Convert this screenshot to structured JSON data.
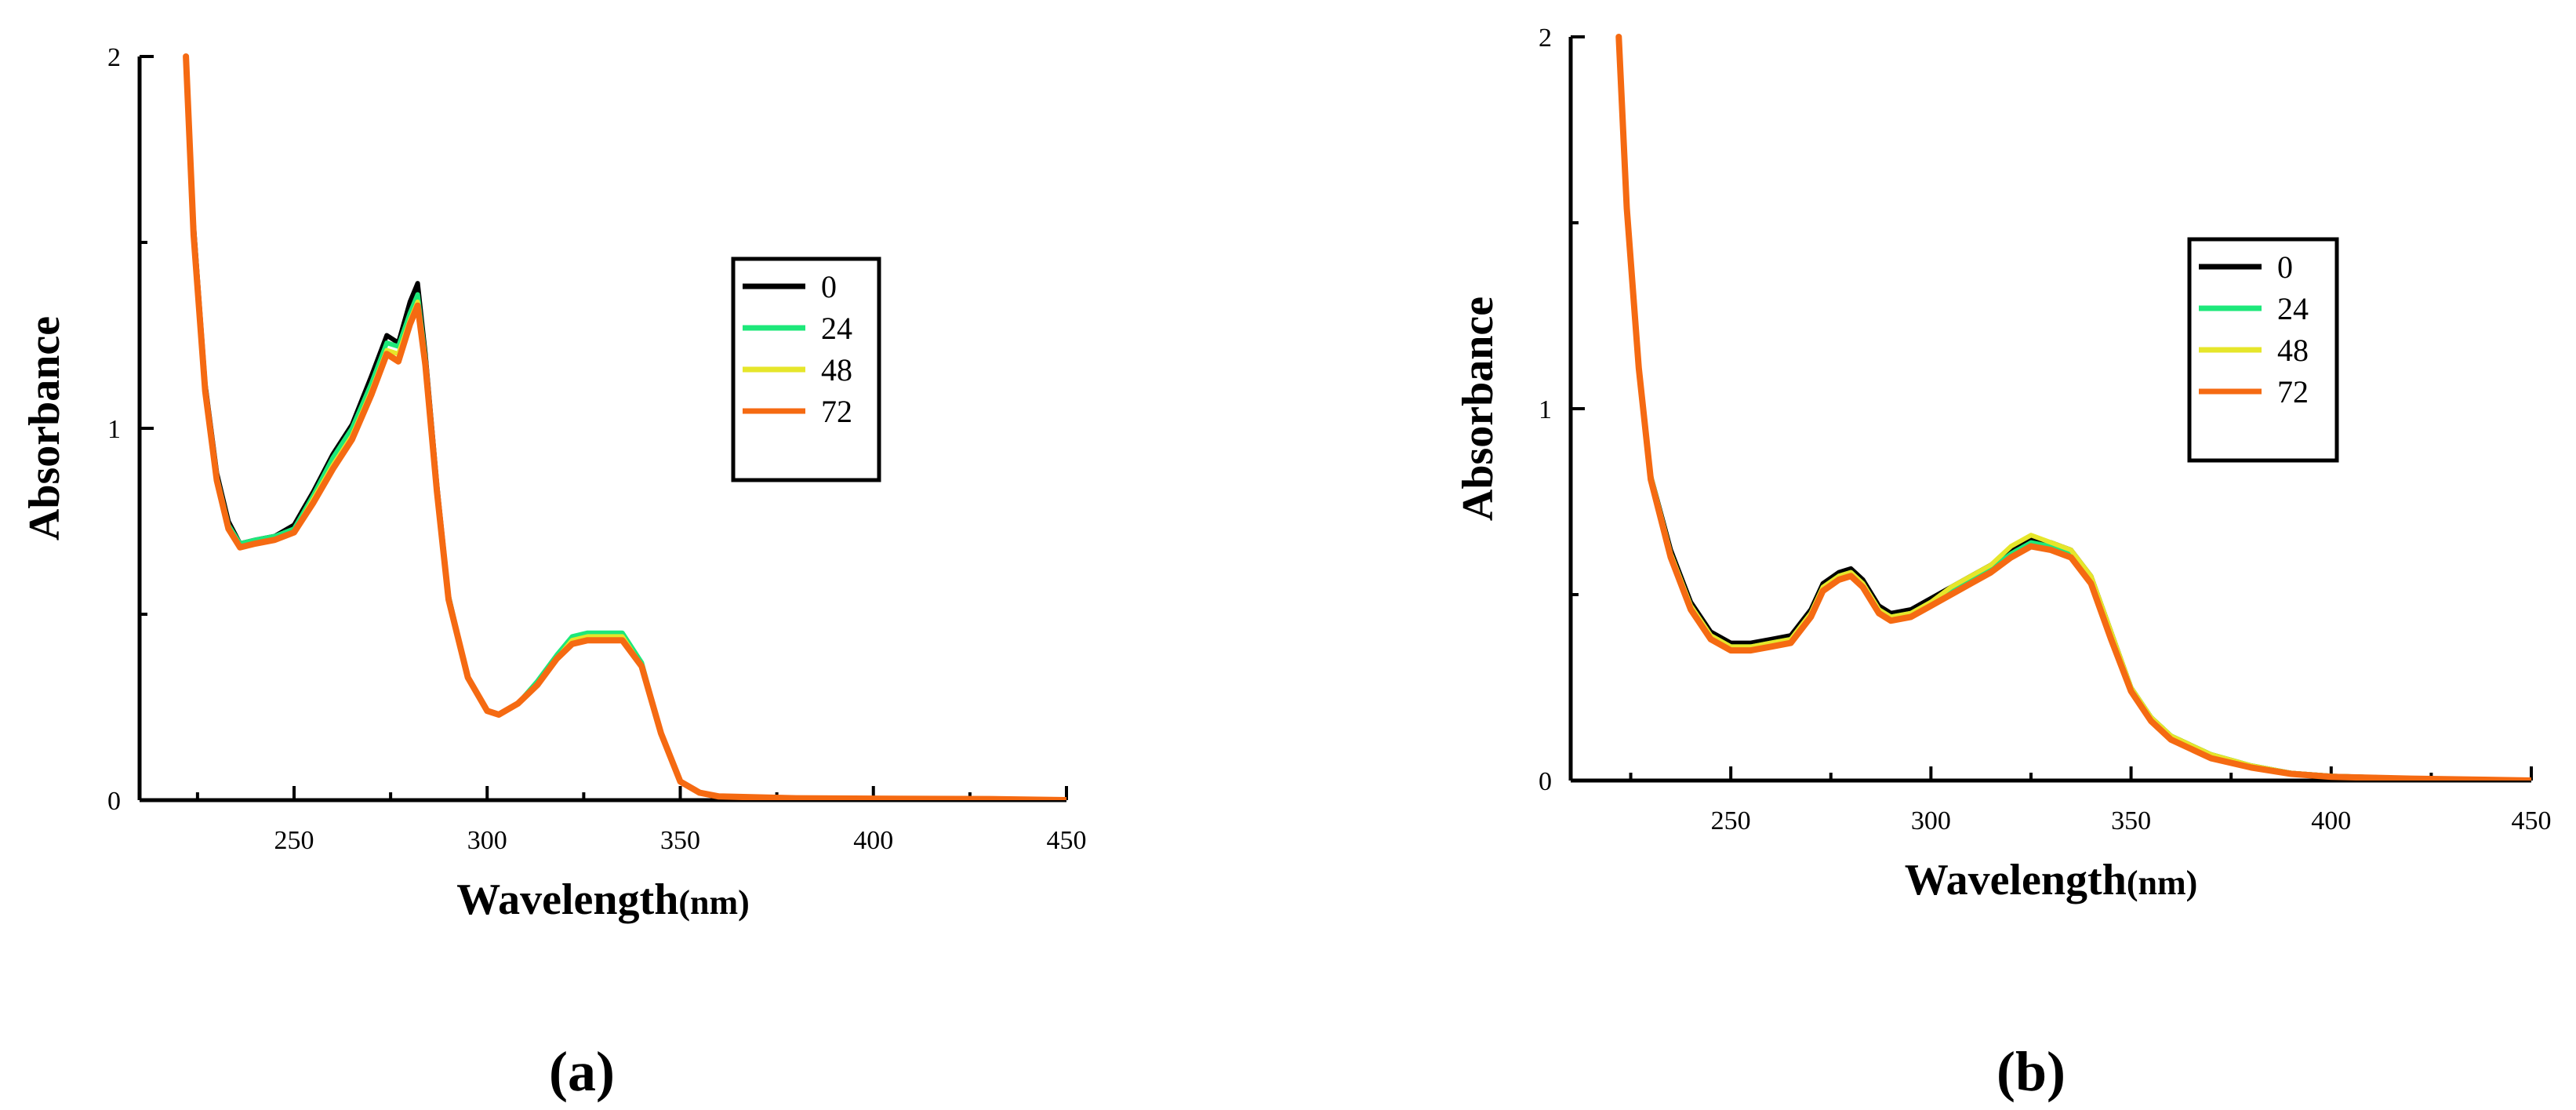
{
  "chart_data": [
    {
      "type": "line",
      "panel": "(a)",
      "xlabel": "Wavelength",
      "xunit": "(nm)",
      "ylabel": "Absorbance",
      "xlim": [
        210,
        450
      ],
      "ylim": [
        0,
        2
      ],
      "xticks": [
        250,
        300,
        350,
        400,
        450
      ],
      "xtick_labels": [
        "250",
        "300",
        "350",
        "400",
        "450"
      ],
      "yticks": [
        0,
        1,
        2
      ],
      "ytick_labels": [
        "0",
        "1",
        "2"
      ],
      "grid": false,
      "legend_position": "right",
      "series": [
        {
          "name": "0",
          "color": "#000000",
          "x": [
            222,
            224,
            227,
            230,
            233,
            236,
            240,
            245,
            250,
            255,
            260,
            265,
            270,
            274,
            277,
            280,
            282,
            284,
            287,
            290,
            295,
            300,
            303,
            308,
            313,
            318,
            322,
            326,
            330,
            335,
            340,
            345,
            350,
            355,
            360,
            380,
            400,
            430,
            450
          ],
          "y": [
            2.0,
            1.55,
            1.12,
            0.88,
            0.75,
            0.69,
            0.7,
            0.71,
            0.74,
            0.83,
            0.93,
            1.01,
            1.14,
            1.25,
            1.23,
            1.34,
            1.39,
            1.2,
            0.85,
            0.55,
            0.33,
            0.24,
            0.23,
            0.26,
            0.31,
            0.38,
            0.43,
            0.44,
            0.44,
            0.44,
            0.36,
            0.18,
            0.05,
            0.02,
            0.01,
            0.005,
            0.004,
            0.003,
            0.0
          ]
        },
        {
          "name": "24",
          "color": "#1de87a",
          "x": [
            222,
            224,
            227,
            230,
            233,
            236,
            240,
            245,
            250,
            255,
            260,
            265,
            270,
            274,
            277,
            280,
            282,
            284,
            287,
            290,
            295,
            300,
            303,
            308,
            313,
            318,
            322,
            326,
            330,
            335,
            340,
            345,
            350,
            355,
            360,
            380,
            400,
            430,
            450
          ],
          "y": [
            2.0,
            1.53,
            1.11,
            0.87,
            0.74,
            0.69,
            0.7,
            0.71,
            0.73,
            0.82,
            0.92,
            1.0,
            1.12,
            1.23,
            1.22,
            1.31,
            1.36,
            1.19,
            0.84,
            0.55,
            0.33,
            0.24,
            0.23,
            0.26,
            0.32,
            0.39,
            0.44,
            0.45,
            0.45,
            0.45,
            0.37,
            0.18,
            0.05,
            0.02,
            0.01,
            0.005,
            0.004,
            0.003,
            0.0
          ]
        },
        {
          "name": "48",
          "color": "#e6e62a",
          "x": [
            222,
            224,
            227,
            230,
            233,
            236,
            240,
            245,
            250,
            255,
            260,
            265,
            270,
            274,
            277,
            280,
            282,
            284,
            287,
            290,
            295,
            300,
            303,
            308,
            313,
            318,
            322,
            326,
            330,
            335,
            340,
            345,
            350,
            355,
            360,
            380,
            400,
            430,
            450
          ],
          "y": [
            2.0,
            1.52,
            1.1,
            0.86,
            0.73,
            0.68,
            0.69,
            0.7,
            0.72,
            0.81,
            0.9,
            0.98,
            1.1,
            1.21,
            1.2,
            1.29,
            1.34,
            1.18,
            0.83,
            0.54,
            0.33,
            0.24,
            0.23,
            0.26,
            0.31,
            0.38,
            0.43,
            0.44,
            0.44,
            0.44,
            0.36,
            0.18,
            0.05,
            0.02,
            0.01,
            0.005,
            0.004,
            0.003,
            0.0
          ]
        },
        {
          "name": "72",
          "color": "#f56a12",
          "x": [
            222,
            224,
            227,
            230,
            233,
            236,
            240,
            245,
            250,
            255,
            260,
            265,
            270,
            274,
            277,
            280,
            282,
            284,
            287,
            290,
            295,
            300,
            303,
            308,
            313,
            318,
            322,
            326,
            330,
            335,
            340,
            345,
            350,
            355,
            360,
            380,
            400,
            430,
            450
          ],
          "y": [
            2.0,
            1.52,
            1.1,
            0.86,
            0.73,
            0.68,
            0.69,
            0.7,
            0.72,
            0.8,
            0.89,
            0.97,
            1.09,
            1.2,
            1.18,
            1.28,
            1.33,
            1.17,
            0.83,
            0.54,
            0.33,
            0.24,
            0.23,
            0.26,
            0.31,
            0.38,
            0.42,
            0.43,
            0.43,
            0.43,
            0.36,
            0.18,
            0.05,
            0.02,
            0.01,
            0.005,
            0.004,
            0.003,
            0.0
          ]
        }
      ]
    },
    {
      "type": "line",
      "panel": "(b)",
      "xlabel": "Wavelength",
      "xunit": "(nm)",
      "ylabel": "Absorbance",
      "xlim": [
        210,
        450
      ],
      "ylim": [
        0,
        2
      ],
      "xticks": [
        250,
        300,
        350,
        400,
        450
      ],
      "xtick_labels": [
        "250",
        "300",
        "350",
        "400",
        "450"
      ],
      "yticks": [
        0,
        1,
        2
      ],
      "ytick_labels": [
        "0",
        "1",
        "2"
      ],
      "grid": false,
      "legend_position": "right",
      "series": [
        {
          "name": "0",
          "color": "#000000",
          "x": [
            222,
            224,
            227,
            230,
            235,
            240,
            245,
            250,
            255,
            260,
            265,
            270,
            273,
            277,
            280,
            283,
            287,
            290,
            295,
            300,
            305,
            310,
            315,
            320,
            325,
            330,
            335,
            340,
            345,
            350,
            355,
            360,
            370,
            380,
            390,
            400,
            420,
            450
          ],
          "y": [
            2.0,
            1.55,
            1.12,
            0.82,
            0.62,
            0.48,
            0.4,
            0.37,
            0.37,
            0.38,
            0.39,
            0.46,
            0.53,
            0.56,
            0.57,
            0.54,
            0.47,
            0.45,
            0.46,
            0.49,
            0.52,
            0.55,
            0.58,
            0.62,
            0.65,
            0.64,
            0.62,
            0.55,
            0.4,
            0.25,
            0.17,
            0.12,
            0.07,
            0.04,
            0.02,
            0.012,
            0.006,
            0.0
          ]
        },
        {
          "name": "24",
          "color": "#1de87a",
          "x": [
            222,
            224,
            227,
            230,
            235,
            240,
            245,
            250,
            255,
            260,
            265,
            270,
            273,
            277,
            280,
            283,
            287,
            290,
            295,
            300,
            305,
            310,
            315,
            320,
            325,
            330,
            335,
            340,
            345,
            350,
            355,
            360,
            370,
            380,
            390,
            400,
            420,
            450
          ],
          "y": [
            2.0,
            1.55,
            1.12,
            0.82,
            0.61,
            0.47,
            0.39,
            0.36,
            0.36,
            0.37,
            0.38,
            0.45,
            0.52,
            0.55,
            0.56,
            0.53,
            0.46,
            0.44,
            0.45,
            0.48,
            0.51,
            0.54,
            0.57,
            0.61,
            0.64,
            0.63,
            0.61,
            0.54,
            0.39,
            0.25,
            0.17,
            0.12,
            0.07,
            0.04,
            0.02,
            0.012,
            0.006,
            0.0
          ]
        },
        {
          "name": "48",
          "color": "#e6e62a",
          "x": [
            222,
            224,
            227,
            230,
            235,
            240,
            245,
            250,
            255,
            260,
            265,
            270,
            273,
            277,
            280,
            283,
            287,
            290,
            295,
            300,
            305,
            310,
            315,
            320,
            325,
            330,
            335,
            340,
            345,
            350,
            355,
            360,
            370,
            380,
            390,
            400,
            420,
            450
          ],
          "y": [
            2.0,
            1.55,
            1.12,
            0.82,
            0.61,
            0.47,
            0.39,
            0.36,
            0.36,
            0.37,
            0.38,
            0.45,
            0.52,
            0.55,
            0.56,
            0.53,
            0.46,
            0.44,
            0.45,
            0.48,
            0.52,
            0.55,
            0.58,
            0.63,
            0.66,
            0.64,
            0.62,
            0.55,
            0.4,
            0.25,
            0.17,
            0.12,
            0.07,
            0.04,
            0.02,
            0.012,
            0.006,
            0.0
          ]
        },
        {
          "name": "72",
          "color": "#f56a12",
          "x": [
            222,
            224,
            227,
            230,
            235,
            240,
            245,
            250,
            255,
            260,
            265,
            270,
            273,
            277,
            280,
            283,
            287,
            290,
            295,
            300,
            305,
            310,
            315,
            320,
            325,
            330,
            335,
            340,
            345,
            350,
            355,
            360,
            370,
            380,
            390,
            400,
            420,
            450
          ],
          "y": [
            2.0,
            1.54,
            1.11,
            0.81,
            0.6,
            0.46,
            0.38,
            0.35,
            0.35,
            0.36,
            0.37,
            0.44,
            0.51,
            0.54,
            0.55,
            0.52,
            0.45,
            0.43,
            0.44,
            0.47,
            0.5,
            0.53,
            0.56,
            0.6,
            0.63,
            0.62,
            0.6,
            0.53,
            0.38,
            0.24,
            0.16,
            0.11,
            0.06,
            0.035,
            0.018,
            0.01,
            0.005,
            0.0
          ]
        }
      ]
    }
  ]
}
